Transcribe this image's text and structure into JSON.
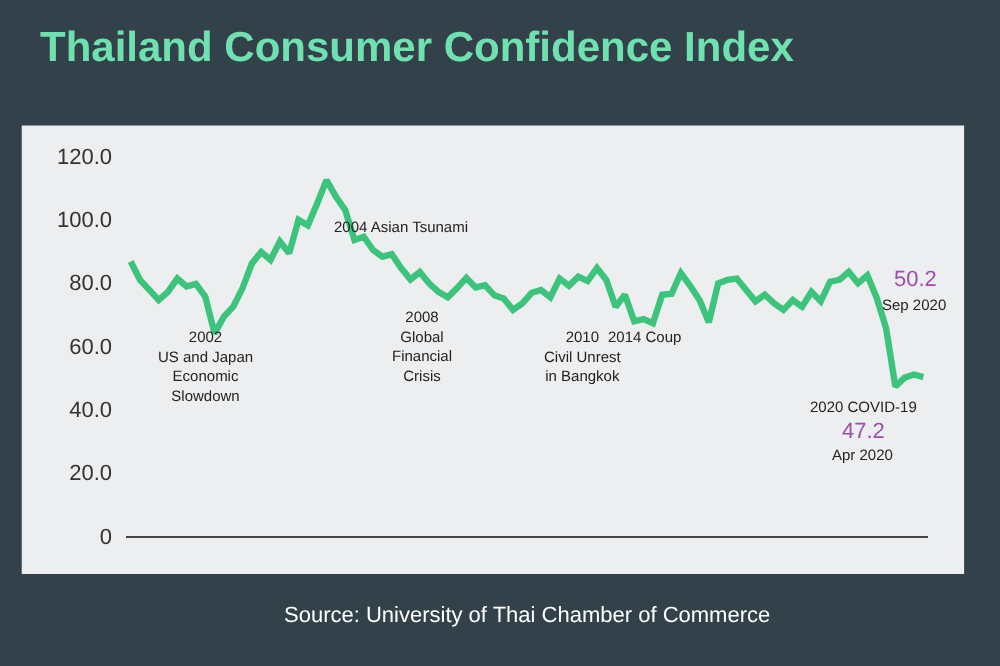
{
  "chart_data": {
    "type": "line",
    "title": "Thailand Consumer Confidence Index",
    "categories": [
      null,
      null,
      null,
      null,
      null,
      null,
      null,
      null,
      null,
      null,
      null,
      null,
      null,
      null,
      null,
      null,
      null,
      null,
      null,
      null,
      null,
      null,
      null,
      null,
      null,
      null,
      null,
      null,
      null,
      null,
      null,
      null,
      null,
      null,
      null,
      null,
      null,
      null,
      null,
      null,
      null,
      null,
      null,
      null,
      null,
      null,
      null,
      null,
      null,
      null,
      null,
      null,
      null,
      null,
      null,
      null,
      null,
      null,
      null,
      null,
      null,
      null,
      null,
      null,
      null,
      null,
      null,
      null,
      null,
      null,
      null,
      null,
      null,
      null,
      null,
      null,
      null,
      null,
      null,
      null,
      null,
      null,
      null,
      null,
      null,
      null
    ],
    "series": [
      {
        "color": "#3cc47c",
        "values": [
          86.7,
          80.9,
          77.7,
          74.5,
          77.1,
          81.3,
          78.8,
          79.6,
          75.6,
          64.0,
          69.3,
          72.4,
          78.3,
          86.1,
          89.7,
          87.2,
          93.0,
          89.3,
          99.8,
          98.1,
          105.0,
          112.4,
          107.2,
          103.0,
          93.5,
          94.5,
          90.3,
          88.2,
          89.0,
          84.6,
          81.0,
          83.4,
          79.8,
          77.1,
          75.4,
          78.3,
          81.5,
          78.5,
          79.2,
          76.0,
          75.0,
          71.4,
          73.5,
          76.8,
          77.7,
          75.4,
          81.3,
          79.0,
          81.9,
          80.5,
          84.6,
          80.9,
          72.4,
          76.2,
          67.8,
          68.5,
          67.2,
          76.2,
          76.5,
          83.0,
          79.0,
          74.5,
          67.5,
          79.8,
          80.9,
          81.3,
          77.7,
          74.1,
          76.2,
          73.5,
          71.4,
          74.5,
          72.4,
          77.1,
          74.1,
          80.3,
          80.9,
          83.4,
          79.8,
          82.3,
          75.2,
          65.7,
          47.2,
          50.0,
          51.0,
          50.2
        ]
      }
    ],
    "ylim": [
      0,
      120
    ],
    "yticks": [
      {
        "value": 0,
        "label": "0"
      },
      {
        "value": 20,
        "label": "20.0"
      },
      {
        "value": 40,
        "label": "40.0"
      },
      {
        "value": 60,
        "label": "60.0"
      },
      {
        "value": 80,
        "label": "80.0"
      },
      {
        "value": 100,
        "label": "100.0"
      },
      {
        "value": 120,
        "label": "120.0"
      }
    ],
    "tick_labels": "y",
    "grid": false,
    "legend": false,
    "annotations": [
      "2002\nUS and Japan\nEconomic\nSlowdown",
      "2004 Asian Tsunami",
      "2008\nGlobal\nFinancial\nCrisis",
      "2010\nCivil Unrest\nin Bangkok",
      "2014 Coup",
      "2020 COVID-19",
      "47.2",
      "Apr 2020",
      "50.2",
      "Sep 2020",
      "Source: University of Thai Chamber of Commerce"
    ]
  }
}
